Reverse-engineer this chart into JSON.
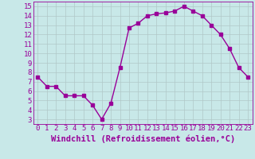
{
  "x": [
    0,
    1,
    2,
    3,
    4,
    5,
    6,
    7,
    8,
    9,
    10,
    11,
    12,
    13,
    14,
    15,
    16,
    17,
    18,
    19,
    20,
    21,
    22,
    23
  ],
  "y": [
    7.5,
    6.5,
    6.5,
    5.5,
    5.5,
    5.5,
    4.5,
    3.0,
    4.7,
    8.5,
    12.7,
    13.2,
    14.0,
    14.2,
    14.3,
    14.5,
    15.0,
    14.5,
    14.0,
    13.0,
    12.0,
    10.5,
    8.5,
    7.5
  ],
  "line_color": "#990099",
  "marker": "s",
  "markersize": 2.2,
  "linewidth": 1.0,
  "bg_color": "#c8e8e8",
  "grid_color": "#b0c8c8",
  "xlabel": "Windchill (Refroidissement éolien,°C)",
  "xlim": [
    -0.5,
    23.5
  ],
  "ylim": [
    2.5,
    15.5
  ],
  "yticks": [
    3,
    4,
    5,
    6,
    7,
    8,
    9,
    10,
    11,
    12,
    13,
    14,
    15
  ],
  "xticks": [
    0,
    1,
    2,
    3,
    4,
    5,
    6,
    7,
    8,
    9,
    10,
    11,
    12,
    13,
    14,
    15,
    16,
    17,
    18,
    19,
    20,
    21,
    22,
    23
  ],
  "tick_color": "#990099",
  "label_color": "#990099",
  "fontsize_xlabel": 7.5,
  "fontsize_ticks": 6.5
}
